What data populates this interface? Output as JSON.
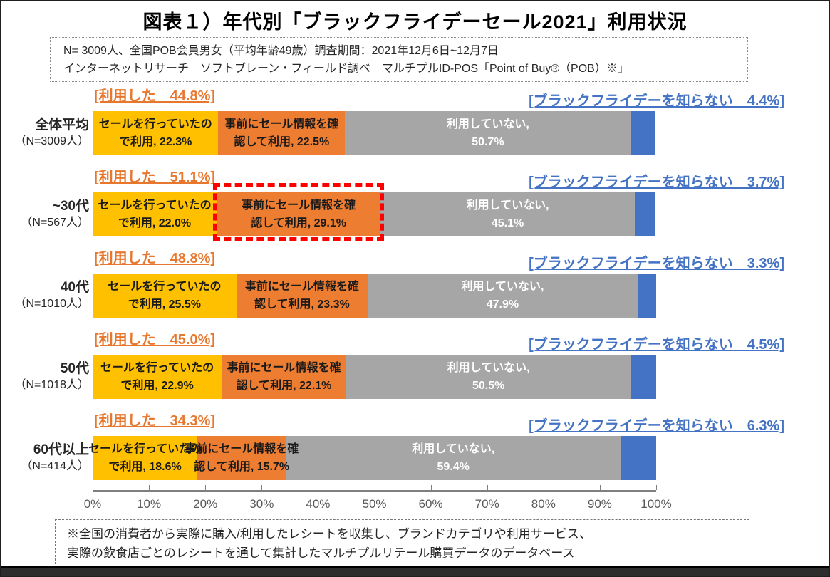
{
  "title": "図表１）年代別「ブラックフライデーセール2021」利用状況",
  "survey_note": {
    "line1": "N= 3009人、全国POB会員男女（平均年齢49歳）調査期間：2021年12月6日~12月7日",
    "line2": "インターネットリサーチ　ソフトブレーン・フィールド調べ　マルチプルID-POS「Point of Buy®（POB）※」"
  },
  "colors": {
    "sale_noticed": "#FFC000",
    "checked_in_advance": "#ED7D31",
    "not_used": "#A6A6A6",
    "unknown": "#4472C4",
    "used_label_text": "#E8772E",
    "unknown_label_text": "#4472C4",
    "highlight_border": "#FF0000"
  },
  "rows": [
    {
      "group": "全体平均",
      "n_label": "（N=3009人）",
      "used_label": "[利用した　44.8%]",
      "unknown_label": "[ブラックフライデーを知らない　4.4%]",
      "segments": [
        {
          "name": "sale_noticed",
          "line1": "セールを行っていたの",
          "line2": "で利用, 22.3%",
          "value": 22.3
        },
        {
          "name": "checked_in_advance",
          "line1": "事前にセール情報を確",
          "line2": "認して利用, 22.5%",
          "value": 22.5
        },
        {
          "name": "not_used",
          "line1": "利用していない,",
          "line2": "50.7%",
          "value": 50.7
        },
        {
          "name": "unknown",
          "value": 4.4
        }
      ]
    },
    {
      "group": "~30代",
      "n_label": "（N=567人）",
      "used_label": "[利用した　51.1%]",
      "unknown_label": "[ブラックフライデーを知らない　3.7%]",
      "segments": [
        {
          "name": "sale_noticed",
          "line1": "セールを行っていたの",
          "line2": "で利用, 22.0%",
          "value": 22.0
        },
        {
          "name": "checked_in_advance",
          "line1": "事前にセール情報を確",
          "line2": "認して利用, 29.1%",
          "value": 29.1,
          "highlight": true
        },
        {
          "name": "not_used",
          "line1": "利用していない,",
          "line2": "45.1%",
          "value": 45.1
        },
        {
          "name": "unknown",
          "value": 3.7
        }
      ]
    },
    {
      "group": "40代",
      "n_label": "（N=1010人）",
      "used_label": "[利用した　48.8%]",
      "unknown_label": "[ブラックフライデーを知らない　3.3%]",
      "segments": [
        {
          "name": "sale_noticed",
          "line1": "セールを行っていたの",
          "line2": "で利用, 25.5%",
          "value": 25.5
        },
        {
          "name": "checked_in_advance",
          "line1": "事前にセール情報を確",
          "line2": "認して利用, 23.3%",
          "value": 23.3
        },
        {
          "name": "not_used",
          "line1": "利用していない,",
          "line2": "47.9%",
          "value": 47.9
        },
        {
          "name": "unknown",
          "value": 3.3
        }
      ]
    },
    {
      "group": "50代",
      "n_label": "（N=1018人）",
      "used_label": "[利用した　45.0%]",
      "unknown_label": "[ブラックフライデーを知らない　4.5%]",
      "segments": [
        {
          "name": "sale_noticed",
          "line1": "セールを行っていたの",
          "line2": "で利用, 22.9%",
          "value": 22.9
        },
        {
          "name": "checked_in_advance",
          "line1": "事前にセール情報を確",
          "line2": "認して利用, 22.1%",
          "value": 22.1
        },
        {
          "name": "not_used",
          "line1": "利用していない,",
          "line2": "50.5%",
          "value": 50.5
        },
        {
          "name": "unknown",
          "value": 4.5
        }
      ]
    },
    {
      "group": "60代以上",
      "n_label": "（N=414人）",
      "used_label": "[利用した　34.3%]",
      "unknown_label": "[ブラックフライデーを知らない　6.3%]",
      "segments": [
        {
          "name": "sale_noticed",
          "line1": "セールを行っていたの",
          "line2": "で利用, 18.6%",
          "value": 18.6
        },
        {
          "name": "checked_in_advance",
          "line1": "事前にセール情報を確",
          "line2": "認して利用, 15.7%",
          "value": 15.7
        },
        {
          "name": "not_used",
          "line1": "利用していない,",
          "line2": "59.4%",
          "value": 59.4
        },
        {
          "name": "unknown",
          "value": 6.3
        }
      ]
    }
  ],
  "axis": {
    "ticks": [
      "0%",
      "10%",
      "20%",
      "30%",
      "40%",
      "50%",
      "60%",
      "70%",
      "80%",
      "90%",
      "100%"
    ]
  },
  "footnote": {
    "line1": "※全国の消費者から実際に購入/利用したレシートを収集し、ブランドカテゴリや利用サービス、",
    "line2": "実際の飲食店ごとのレシートを通して集計したマルチプルリテール購買データのデータベース"
  },
  "chart_data": {
    "type": "bar",
    "orientation": "horizontal",
    "stacked": true,
    "title": "図表１）年代別「ブラックフライデーセール2021」利用状況",
    "categories": [
      "全体平均（N=3009人）",
      "~30代（N=567人）",
      "40代（N=1010人）",
      "50代（N=1018人）",
      "60代以上（N=414人）"
    ],
    "series": [
      {
        "name": "セールを行っていたので利用",
        "color": "#FFC000",
        "values": [
          22.3,
          22.0,
          25.5,
          22.9,
          18.6
        ]
      },
      {
        "name": "事前にセール情報を確認して利用",
        "color": "#ED7D31",
        "values": [
          22.5,
          29.1,
          23.3,
          22.1,
          15.7
        ]
      },
      {
        "name": "利用していない",
        "color": "#A6A6A6",
        "values": [
          50.7,
          45.1,
          47.9,
          50.5,
          59.4
        ]
      },
      {
        "name": "ブラックフライデーを知らない",
        "color": "#4472C4",
        "values": [
          4.4,
          3.7,
          3.3,
          4.5,
          6.3
        ]
      }
    ],
    "annotations": {
      "used_totals": [
        44.8,
        51.1,
        48.8,
        45.0,
        34.3
      ],
      "used_total_labels": [
        "利用した　44.8%",
        "利用した　51.1%",
        "利用した　48.8%",
        "利用した　45.0%",
        "利用した　34.3%"
      ],
      "unknown_labels": [
        "ブラックフライデーを知らない　4.4%",
        "ブラックフライデーを知らない　3.7%",
        "ブラックフライデーを知らない　3.3%",
        "ブラックフライデーを知らない　4.5%",
        "ブラックフライデーを知らない　6.3%"
      ],
      "highlight": "~30代の「事前にセール情報を確認して利用, 29.1%」セグメントに赤い破線枠"
    },
    "xlim": [
      0,
      100
    ],
    "x_ticks": [
      "0%",
      "10%",
      "20%",
      "30%",
      "40%",
      "50%",
      "60%",
      "70%",
      "80%",
      "90%",
      "100%"
    ],
    "grid": false,
    "legend": false
  }
}
